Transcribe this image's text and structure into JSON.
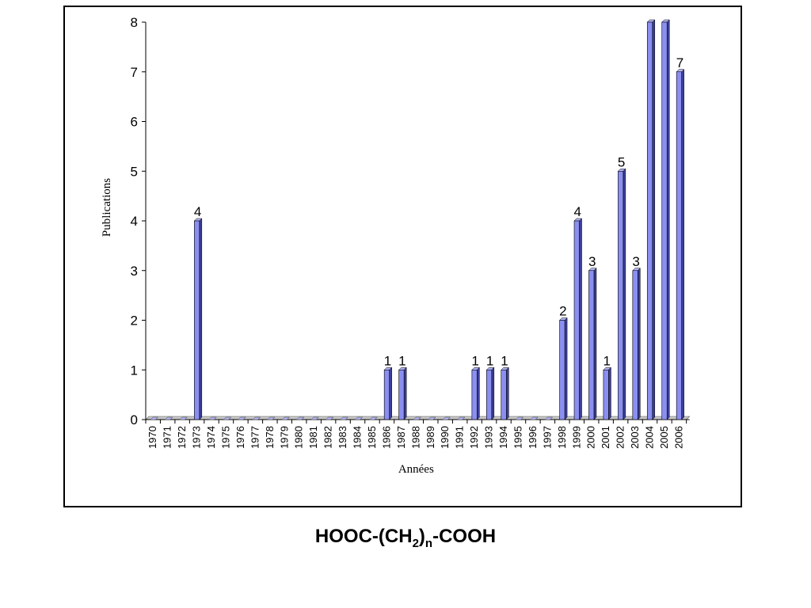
{
  "chart_data": {
    "type": "bar",
    "xlabel": "Années",
    "ylabel": "Publications",
    "ylim": [
      0,
      8
    ],
    "yticks": [
      0,
      1,
      2,
      3,
      4,
      5,
      6,
      7,
      8
    ],
    "grid": false,
    "bar_color": "#8b8ff0",
    "categories": [
      "1970",
      "1971",
      "1972",
      "1973",
      "1974",
      "1975",
      "1976",
      "1977",
      "1978",
      "1979",
      "1980",
      "1981",
      "1982",
      "1983",
      "1984",
      "1985",
      "1986",
      "1987",
      "1988",
      "1989",
      "1990",
      "1991",
      "1992",
      "1993",
      "1994",
      "1995",
      "1996",
      "1997",
      "1998",
      "1999",
      "2000",
      "2001",
      "2002",
      "2003",
      "2004",
      "2005",
      "2006"
    ],
    "values": [
      0,
      0,
      0,
      4,
      0,
      0,
      0,
      0,
      0,
      0,
      0,
      0,
      0,
      0,
      0,
      0,
      1,
      1,
      0,
      0,
      0,
      0,
      1,
      1,
      1,
      0,
      0,
      0,
      2,
      4,
      3,
      1,
      5,
      3,
      8,
      8,
      7
    ],
    "data_labels": [
      "",
      "",
      "",
      "4",
      "",
      "",
      "",
      "",
      "",
      "",
      "",
      "",
      "",
      "",
      "",
      "",
      "1",
      "1",
      "",
      "",
      "",
      "",
      "1",
      "1",
      "1",
      "",
      "",
      "",
      "2",
      "4",
      "3",
      "1",
      "5",
      "3",
      "",
      "",
      "7"
    ]
  },
  "caption": {
    "main": "HOOC-(CH",
    "sub1": "2",
    "mid": ")",
    "sub2": "n",
    "end": "-COOH"
  }
}
